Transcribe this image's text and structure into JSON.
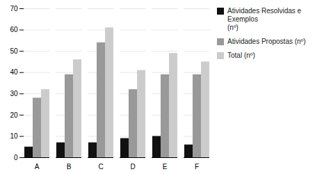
{
  "chart_data": {
    "type": "bar",
    "categories": [
      "A",
      "B",
      "C",
      "D",
      "E",
      "F"
    ],
    "series": [
      {
        "name": "Atividades Resolvidas e Exemplos\n(nº)",
        "color": "#111111",
        "values": [
          5,
          7,
          7,
          9,
          10,
          6
        ]
      },
      {
        "name": "Atividades Propostas  (nº)",
        "color": "#999999",
        "values": [
          28,
          39,
          54,
          32,
          39,
          39
        ]
      },
      {
        "name": "Total  (nº)",
        "color": "#cccccc",
        "values": [
          32,
          46,
          61,
          41,
          49,
          45
        ]
      }
    ],
    "ylim": [
      0,
      70
    ],
    "yticks": [
      0,
      10,
      20,
      30,
      40,
      50,
      60,
      70
    ],
    "grid": true,
    "legend": "right"
  }
}
